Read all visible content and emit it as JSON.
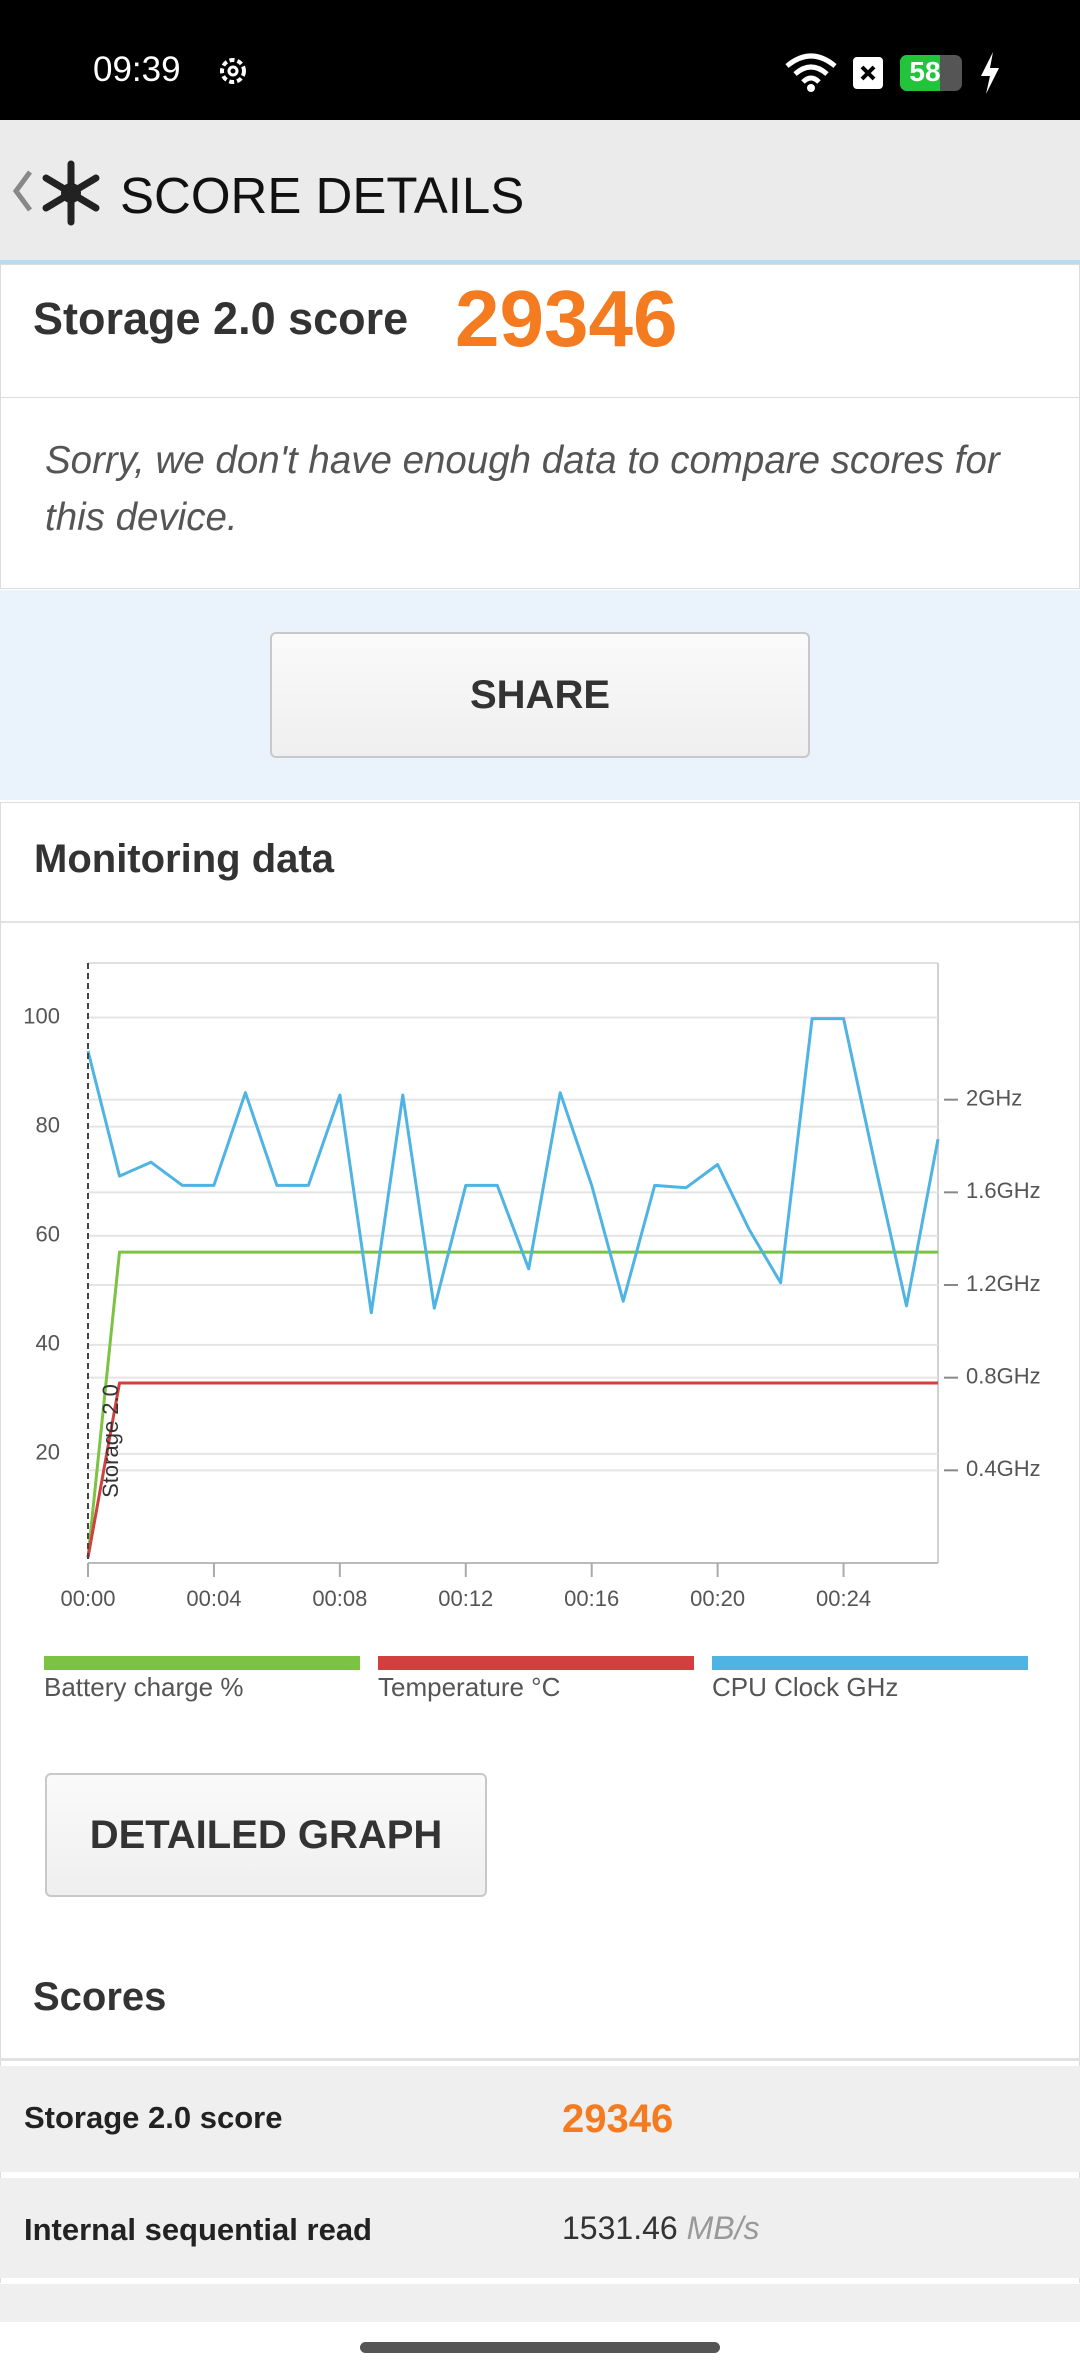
{
  "status_bar": {
    "time": "09:39",
    "battery": 58
  },
  "header": {
    "title": "SCORE DETAILS"
  },
  "score_card": {
    "label": "Storage 2.0 score",
    "score": 29346,
    "message": "Sorry, we don't have enough data to compare scores for this device."
  },
  "share_button": "SHARE",
  "monitoring": {
    "title": "Monitoring data"
  },
  "chart_data": {
    "type": "line",
    "x": [
      0,
      1,
      2,
      3,
      4,
      5,
      6,
      7,
      8,
      9,
      10,
      11,
      12,
      13,
      14,
      15,
      16,
      17,
      18,
      19,
      20,
      21,
      22,
      23,
      24,
      25,
      26,
      27
    ],
    "xlim": [
      0,
      27
    ],
    "xticks": [
      {
        "value": 0,
        "label": "00:00"
      },
      {
        "value": 4,
        "label": "00:04"
      },
      {
        "value": 8,
        "label": "00:08"
      },
      {
        "value": 12,
        "label": "00:12"
      },
      {
        "value": 16,
        "label": "00:16"
      },
      {
        "value": 20,
        "label": "00:20"
      },
      {
        "value": 24,
        "label": "00:24"
      }
    ],
    "ylim": [
      0,
      110
    ],
    "yticks": [
      20,
      40,
      60,
      80,
      100
    ],
    "y2lim": [
      0,
      2.59
    ],
    "y2ticks": [
      {
        "value": 0.4,
        "label": "0.4GHz"
      },
      {
        "value": 0.8,
        "label": "0.8GHz"
      },
      {
        "value": 1.2,
        "label": "1.2GHz"
      },
      {
        "value": 1.6,
        "label": "1.6GHz"
      },
      {
        "value": 2,
        "label": "2GHz"
      }
    ],
    "grid": true,
    "markers": [
      {
        "x": 0,
        "label": "Storage 2.0"
      }
    ],
    "series": [
      {
        "name": "Battery charge %",
        "color": "#7cc243",
        "axis": "y",
        "values": [
          1,
          57,
          57,
          57,
          57,
          57,
          57,
          57,
          57,
          57,
          57,
          57,
          57,
          57,
          57,
          57,
          57,
          57,
          57,
          57,
          57,
          57,
          57,
          57,
          57,
          57,
          57,
          57
        ]
      },
      {
        "name": "Temperature °C",
        "color": "#d13f3f",
        "axis": "y",
        "values": [
          1,
          33,
          33,
          33,
          33,
          33,
          33,
          33,
          33,
          33,
          33,
          33,
          33,
          33,
          33,
          33,
          33,
          33,
          33,
          33,
          33,
          33,
          33,
          33,
          33,
          33,
          33,
          33
        ]
      },
      {
        "name": "CPU Clock GHz",
        "color": "#4fb3e3",
        "axis": "y2",
        "values": [
          2.21,
          1.67,
          1.73,
          1.63,
          1.63,
          2.03,
          1.63,
          1.63,
          2.02,
          1.08,
          2.02,
          1.1,
          1.63,
          1.63,
          1.27,
          2.03,
          1.63,
          1.13,
          1.63,
          1.62,
          1.72,
          1.44,
          1.21,
          2.35,
          2.35,
          1.72,
          1.11,
          1.83
        ]
      }
    ]
  },
  "detailed_graph_button": "DETAILED GRAPH",
  "scores": {
    "title": "Scores",
    "rows": [
      {
        "label": "Storage 2.0 score",
        "value": 29346
      },
      {
        "label": "Internal sequential read",
        "value": 1531.46,
        "unit": "MB/s"
      }
    ]
  }
}
